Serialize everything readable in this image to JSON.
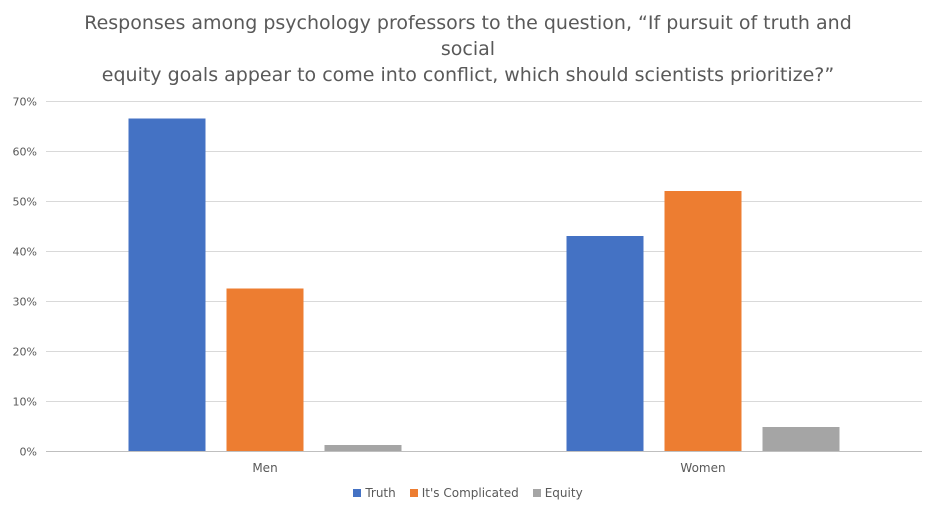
{
  "chart_data": {
    "type": "bar",
    "title_lines": [
      "Responses among psychology professors to the question, “If pursuit of truth and social",
      "equity goals appear to come into conflict, which should scientists prioritize?”"
    ],
    "categories": [
      "Men",
      "Women"
    ],
    "series": [
      {
        "name": "Truth",
        "color": "#4472C4",
        "values": [
          66.5,
          43.0
        ]
      },
      {
        "name": "It's Complicated",
        "color": "#ED7D31",
        "values": [
          32.5,
          52.0
        ]
      },
      {
        "name": "Equity",
        "color": "#A5A5A5",
        "values": [
          1.2,
          4.8
        ]
      }
    ],
    "y_ticks": [
      "0%",
      "10%",
      "20%",
      "30%",
      "40%",
      "50%",
      "60%",
      "70%"
    ],
    "ylim": [
      0,
      70
    ],
    "y_unit": "%",
    "grid": true,
    "legend_position": "bottom"
  }
}
